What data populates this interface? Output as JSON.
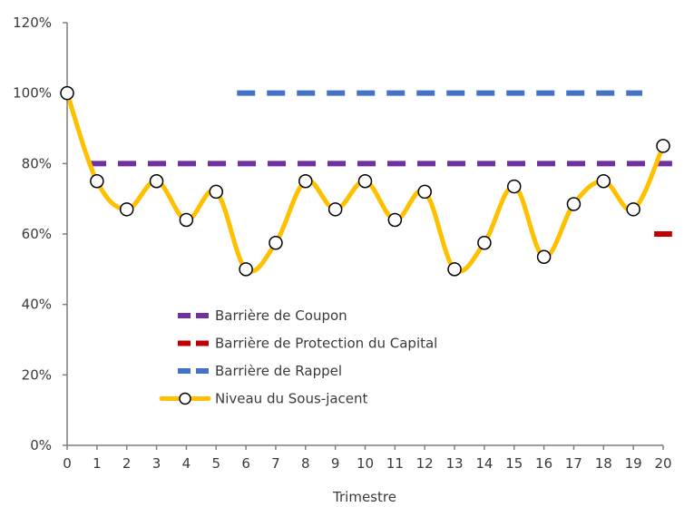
{
  "chart_data": {
    "type": "line",
    "xlabel": "Trimestre",
    "ylabel": "",
    "x": [
      0,
      1,
      2,
      3,
      4,
      5,
      6,
      7,
      8,
      9,
      10,
      11,
      12,
      13,
      14,
      15,
      16,
      17,
      18,
      19,
      20
    ],
    "xticks": [
      "0",
      "1",
      "2",
      "3",
      "4",
      "5",
      "6",
      "7",
      "8",
      "9",
      "10",
      "11",
      "12",
      "13",
      "14",
      "15",
      "16",
      "17",
      "18",
      "19",
      "20"
    ],
    "xlim": [
      0,
      20
    ],
    "ylim": [
      0,
      120
    ],
    "yticks": [
      0,
      20,
      40,
      60,
      80,
      100,
      120
    ],
    "ytick_labels": [
      "0%",
      "20%",
      "40%",
      "60%",
      "80%",
      "100%",
      "120%"
    ],
    "grid": false,
    "legend_position": "bottom-left",
    "series": [
      {
        "name": "Barrière de Coupon",
        "style": "dashed",
        "color": "#7030a0",
        "x": [
          0.7,
          20.3
        ],
        "values": [
          80,
          80
        ]
      },
      {
        "name": "Barrière de Protection du Capital",
        "style": "dashed",
        "color": "#c00000",
        "x": [
          19.7,
          20.3
        ],
        "values": [
          60,
          60
        ]
      },
      {
        "name": "Barrière de Rappel",
        "style": "dashed",
        "color": "#4472c4",
        "x": [
          5.7,
          19.3
        ],
        "values": [
          100,
          100
        ]
      },
      {
        "name": "Niveau du Sous-jacent",
        "style": "smooth-line-markers",
        "color": "#ffc000",
        "x": [
          0,
          1,
          2,
          3,
          4,
          5,
          6,
          7,
          8,
          9,
          10,
          11,
          12,
          13,
          14,
          15,
          16,
          17,
          18,
          19,
          20
        ],
        "values": [
          100,
          75,
          67,
          75,
          64,
          72,
          50,
          57.5,
          75,
          67,
          75,
          64,
          72,
          50,
          57.5,
          73.5,
          53.5,
          68.5,
          75,
          67,
          85
        ]
      }
    ]
  }
}
